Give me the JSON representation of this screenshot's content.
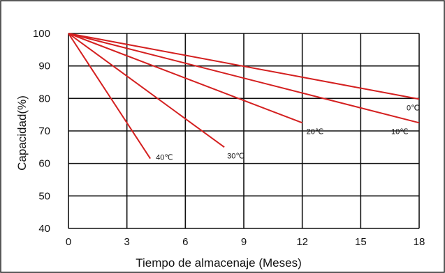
{
  "chart_data": {
    "type": "line",
    "title": "",
    "xlabel": "Tiempo de almacenaje (Meses)",
    "ylabel": "Capacidad(%)",
    "xlim": [
      0,
      18
    ],
    "ylim": [
      40,
      100
    ],
    "xticks": [
      0,
      3,
      6,
      9,
      12,
      15,
      18
    ],
    "yticks": [
      40,
      50,
      60,
      70,
      80,
      90,
      100
    ],
    "grid": true,
    "line_color": "#d42020",
    "series": [
      {
        "name": "0℃",
        "x": [
          0,
          18
        ],
        "y": [
          100,
          79.8
        ]
      },
      {
        "name": "10℃",
        "x": [
          0,
          18
        ],
        "y": [
          100,
          72.5
        ]
      },
      {
        "name": "20℃",
        "x": [
          0,
          12
        ],
        "y": [
          100,
          72.5
        ]
      },
      {
        "name": "30℃",
        "x": [
          0,
          8
        ],
        "y": [
          100,
          65
        ]
      },
      {
        "name": "40℃",
        "x": [
          0,
          4.2
        ],
        "y": [
          100,
          61.5
        ]
      }
    ]
  }
}
